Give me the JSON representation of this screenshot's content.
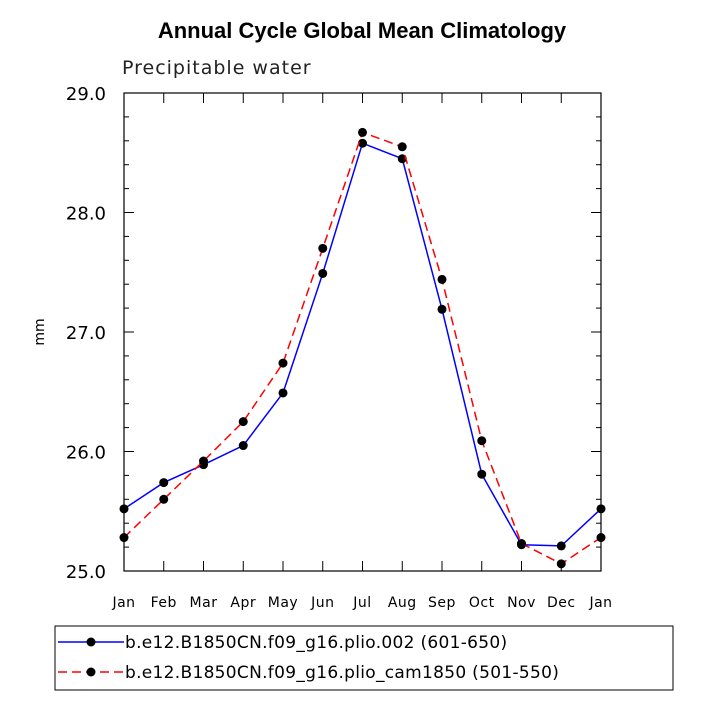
{
  "chart_data": {
    "type": "line",
    "title": "Annual Cycle Global Mean Climatology",
    "subtitle": "Precipitable water",
    "xlabel": "",
    "ylabel": "mm",
    "categories": [
      "Jan",
      "Feb",
      "Mar",
      "Apr",
      "May",
      "Jun",
      "Jul",
      "Aug",
      "Sep",
      "Oct",
      "Nov",
      "Dec",
      "Jan"
    ],
    "ylim": [
      25.0,
      29.0
    ],
    "yticks": [
      "25.0",
      "26.0",
      "27.0",
      "28.0",
      "29.0"
    ],
    "series": [
      {
        "name": "b.e12.B1850CN.f09_g16.plio.002 (601-650)",
        "color": "#0000ff",
        "dash": "solid",
        "values": [
          25.52,
          25.74,
          25.89,
          26.05,
          26.49,
          27.49,
          28.58,
          28.45,
          27.19,
          25.81,
          25.22,
          25.21,
          25.52
        ]
      },
      {
        "name": "b.e12.B1850CN.f09_g16.plio_cam1850 (501-550)",
        "color": "#ff0000",
        "dash": "dashed",
        "values": [
          25.28,
          25.6,
          25.92,
          26.25,
          26.74,
          27.7,
          28.67,
          28.55,
          27.44,
          26.09,
          25.23,
          25.06,
          25.28
        ]
      }
    ],
    "grid": false,
    "legend_position": "bottom"
  }
}
